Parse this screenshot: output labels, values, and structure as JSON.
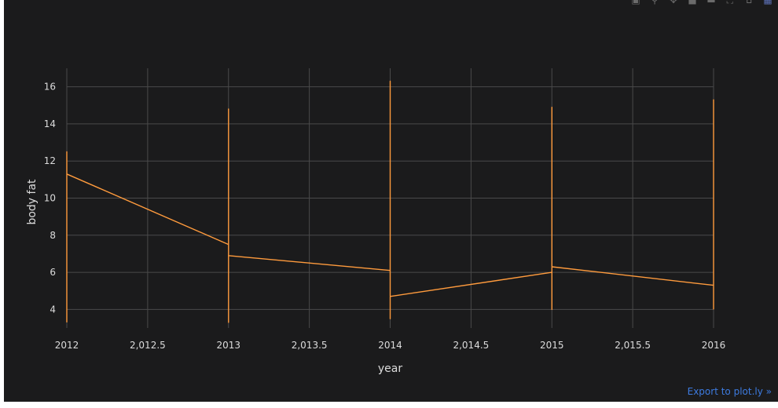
{
  "modebar": {
    "icons": [
      "camera-icon",
      "zoom-icon",
      "pan-icon",
      "zoom-in-icon",
      "zoom-out-icon",
      "autoscale-icon",
      "reset-axes-icon",
      "plotly-logo-icon"
    ]
  },
  "export_link": "Export to plot.ly »",
  "chart_data": {
    "type": "line",
    "title": "",
    "xlabel": "year",
    "ylabel": "body fat",
    "xlim": [
      2012,
      2016
    ],
    "ylim": [
      3,
      17
    ],
    "x_ticks": [
      2012,
      2012.5,
      2013,
      2013.5,
      2014,
      2014.5,
      2015,
      2015.5,
      2016
    ],
    "x_tick_labels": [
      "2012",
      "2,012.5",
      "2013",
      "2,013.5",
      "2014",
      "2,014.5",
      "2015",
      "2,015.5",
      "2016"
    ],
    "y_ticks": [
      4,
      6,
      8,
      10,
      12,
      14,
      16
    ],
    "y_tick_labels": [
      "4",
      "6",
      "8",
      "10",
      "12",
      "14",
      "16"
    ],
    "grid": true,
    "line_color": "#ff9b3d",
    "series": [
      {
        "x": [
          2012,
          2012,
          2012,
          2013,
          2013,
          2013,
          2013,
          2014,
          2014,
          2014,
          2014,
          2015,
          2015,
          2015,
          2015,
          2016,
          2016,
          2016
        ],
        "y": [
          3.3,
          12.5,
          11.3,
          7.5,
          14.8,
          3.3,
          6.9,
          6.1,
          16.3,
          3.5,
          4.7,
          6.0,
          14.9,
          4.0,
          6.3,
          5.3,
          15.3,
          4.0
        ]
      }
    ]
  },
  "colors": {
    "background": "#1b1b1c",
    "grid": "#4a4a4a",
    "text": "#dcdcdc",
    "line": "#ff9b3d",
    "link": "#3d7be0"
  }
}
